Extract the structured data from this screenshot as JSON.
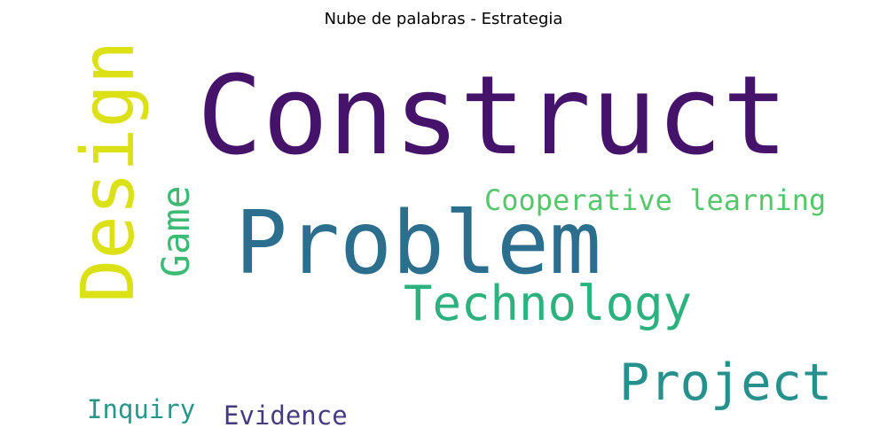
{
  "title": "Nube de palabras - Estrategia",
  "colors": {
    "background": "#ffffff",
    "title_text": "#000000"
  },
  "words": [
    {
      "text": "Construct",
      "color": "#46136a",
      "orientation": "horizontal"
    },
    {
      "text": "Problem",
      "color": "#2c6e8e",
      "orientation": "horizontal"
    },
    {
      "text": "Design",
      "color": "#dbe114",
      "orientation": "vertical"
    },
    {
      "text": "Game",
      "color": "#3dba74",
      "orientation": "vertical"
    },
    {
      "text": "Cooperative learning",
      "color": "#56c66b",
      "orientation": "horizontal"
    },
    {
      "text": "Technology",
      "color": "#2db17e",
      "orientation": "horizontal"
    },
    {
      "text": "Project",
      "color": "#26908d",
      "orientation": "horizontal"
    },
    {
      "text": "Inquiry",
      "color": "#27968b",
      "orientation": "horizontal"
    },
    {
      "text": "Evidence",
      "color": "#473b80",
      "orientation": "horizontal"
    }
  ]
}
